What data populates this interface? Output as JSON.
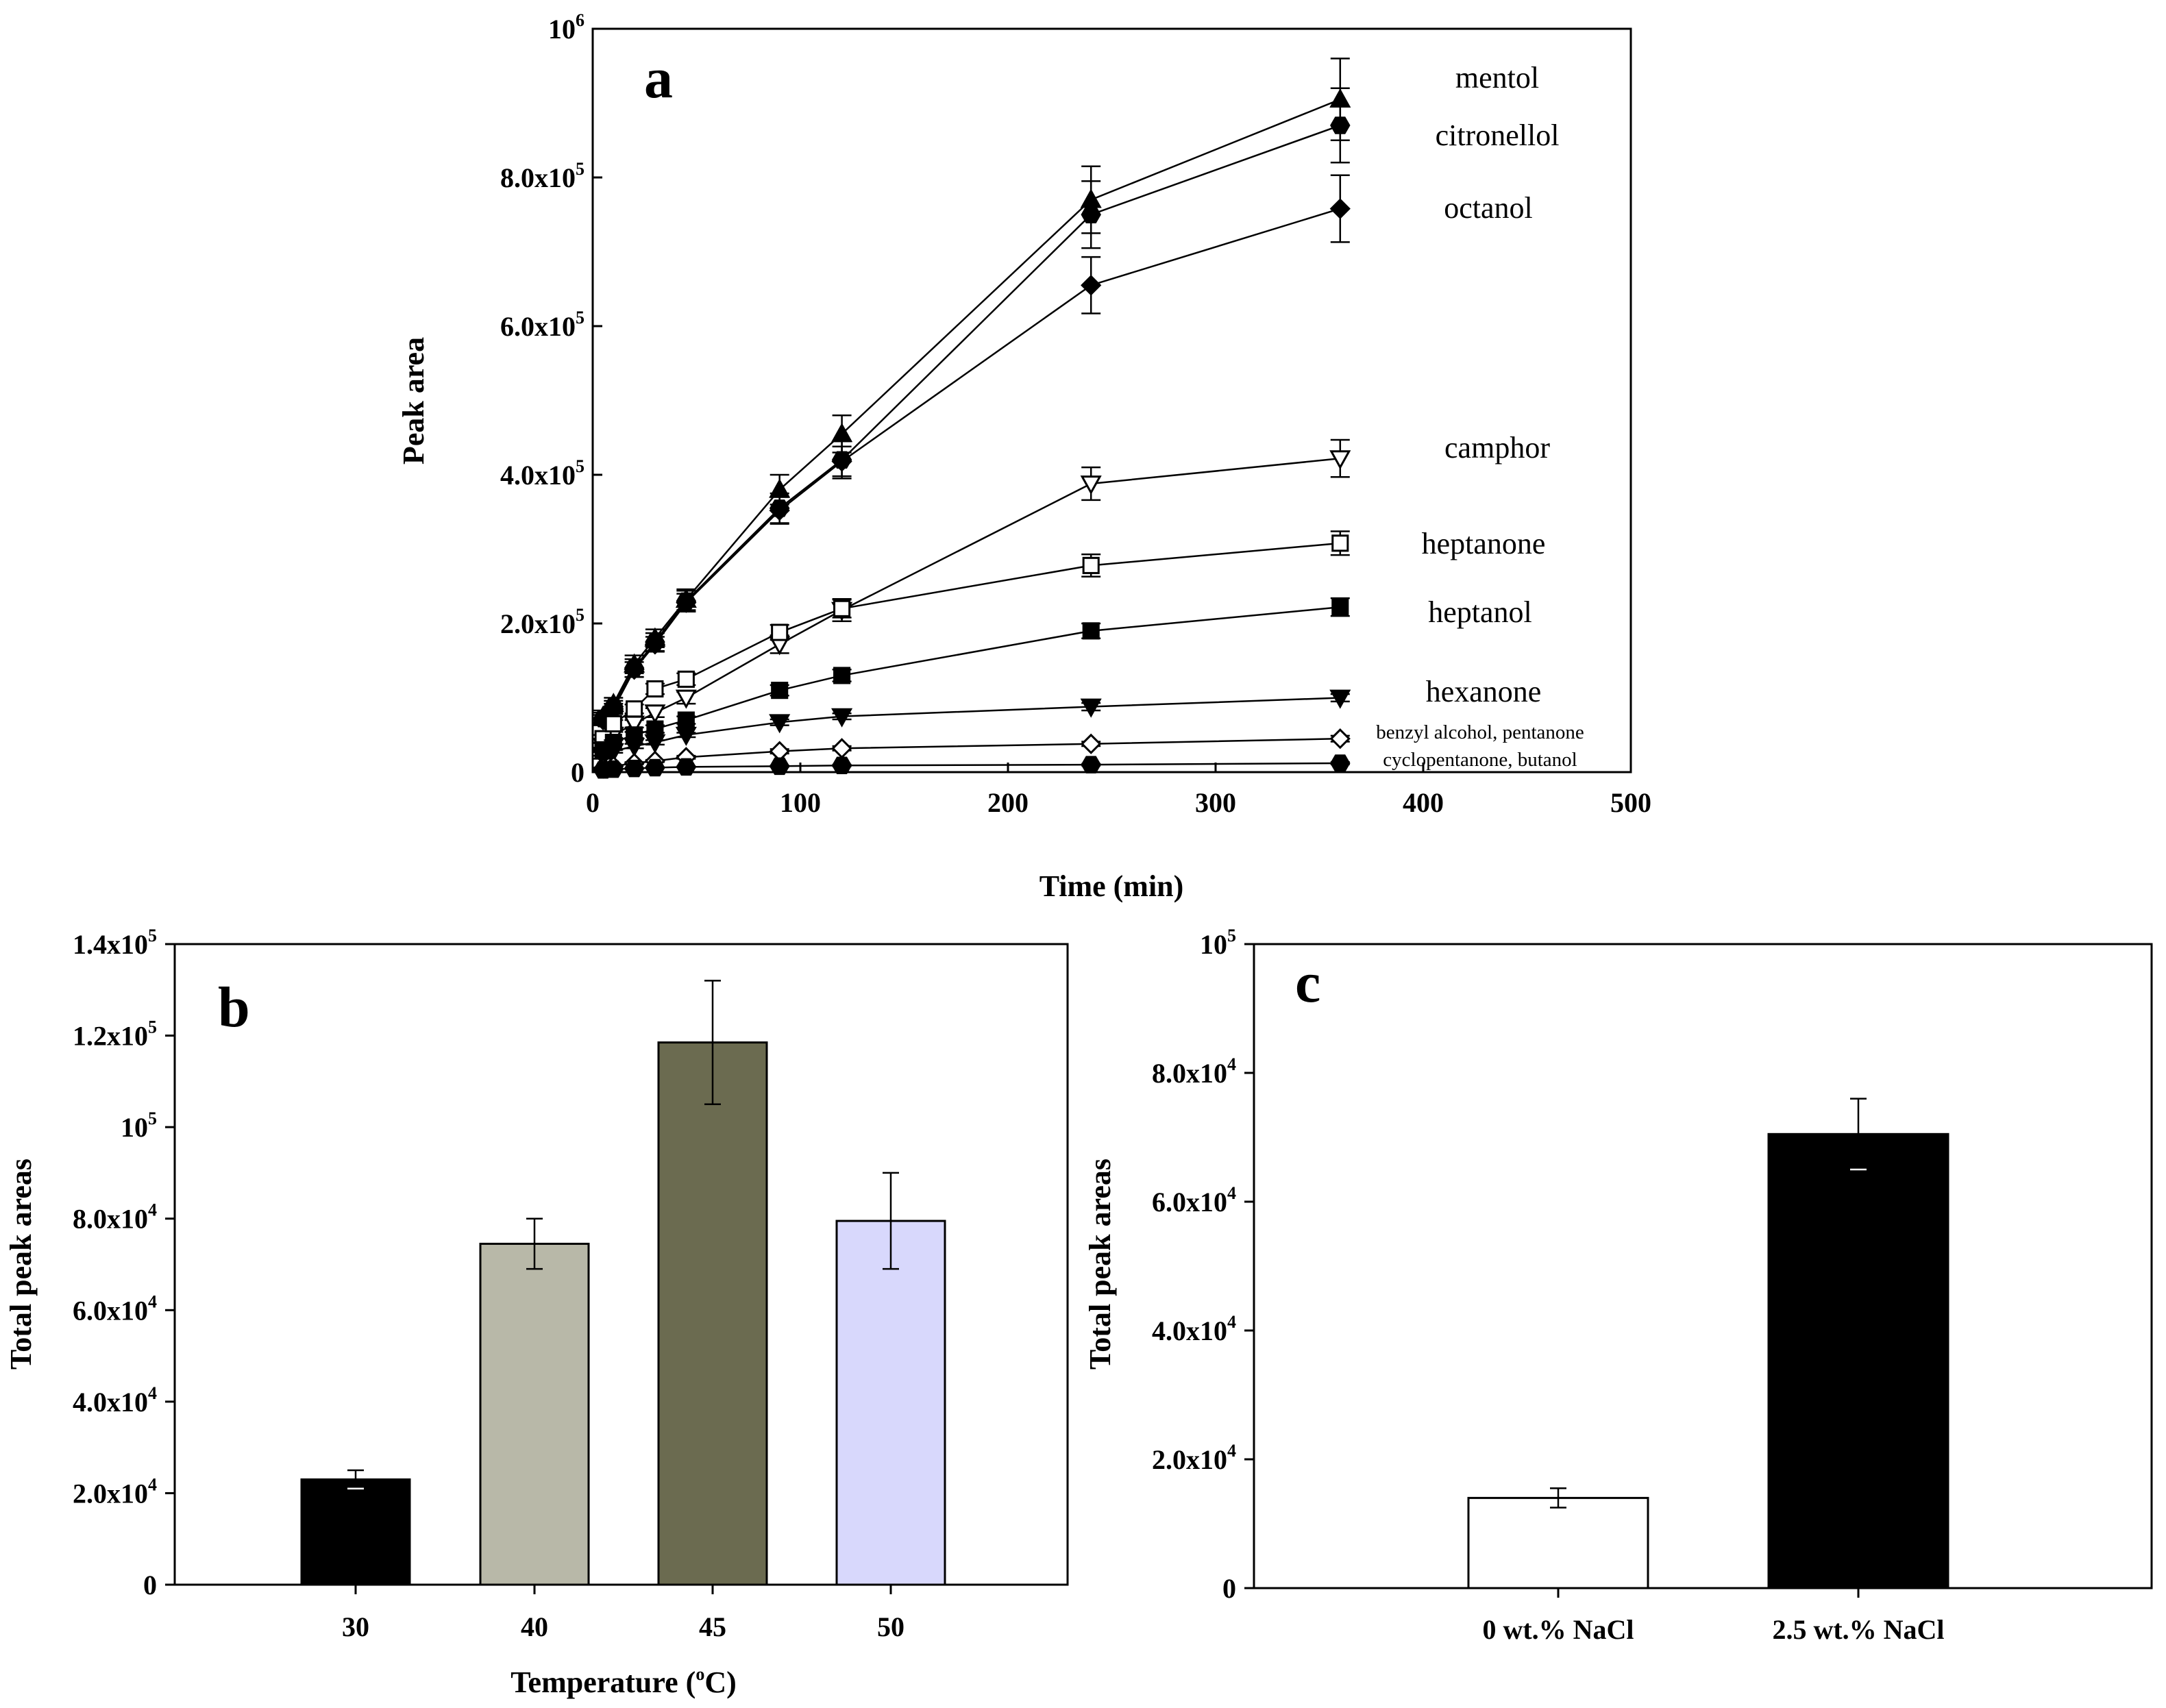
{
  "chart_data": [
    {
      "panel": "a",
      "type": "line",
      "xlabel": "Time (min)",
      "ylabel": "Peak area",
      "xlim": [
        0,
        500
      ],
      "ylim": [
        0,
        1000000
      ],
      "x_ticks": [
        "0",
        "100",
        "200",
        "300",
        "400",
        "500"
      ],
      "y_ticks": [
        {
          "mant": "0",
          "sup": ""
        },
        {
          "mant": "2.0x10",
          "sup": "5"
        },
        {
          "mant": "4.0x10",
          "sup": "5"
        },
        {
          "mant": "6.0x10",
          "sup": "5"
        },
        {
          "mant": "8.0x10",
          "sup": "5"
        },
        {
          "mant": "10",
          "sup": "6"
        }
      ],
      "x": [
        5,
        10,
        20,
        30,
        45,
        90,
        120,
        240,
        360
      ],
      "series": [
        {
          "name": "mentol",
          "marker": "triangle-up",
          "fill": "#000000",
          "values": [
            75000,
            92000,
            145000,
            180000,
            232000,
            380000,
            455000,
            770000,
            905000
          ],
          "err": [
            8000,
            8000,
            12000,
            12000,
            14000,
            20000,
            25000,
            45000,
            55000
          ]
        },
        {
          "name": "citronellol",
          "marker": "hexagon",
          "fill": "#000000",
          "values": [
            72000,
            88000,
            140000,
            175000,
            230000,
            355000,
            420000,
            750000,
            870000
          ],
          "err": [
            8000,
            8000,
            12000,
            12000,
            14000,
            20000,
            25000,
            45000,
            50000
          ]
        },
        {
          "name": "octanol",
          "marker": "diamond",
          "fill": "#000000",
          "values": [
            70000,
            85000,
            138000,
            172000,
            228000,
            352000,
            418000,
            655000,
            758000
          ],
          "err": [
            7000,
            7000,
            10000,
            10000,
            12000,
            18000,
            20000,
            38000,
            45000
          ]
        },
        {
          "name": "camphor",
          "marker": "triangle-down",
          "fill": "#ffffff",
          "values": [
            35000,
            50000,
            65000,
            80000,
            100000,
            172000,
            218000,
            388000,
            422000
          ],
          "err": [
            4000,
            4000,
            5000,
            6000,
            8000,
            12000,
            15000,
            22000,
            25000
          ]
        },
        {
          "name": "heptanone",
          "marker": "square",
          "fill": "#ffffff",
          "values": [
            45000,
            65000,
            85000,
            112000,
            125000,
            188000,
            220000,
            278000,
            308000
          ],
          "err": [
            5000,
            5000,
            6000,
            7000,
            8000,
            10000,
            12000,
            15000,
            16000
          ]
        },
        {
          "name": "heptanol",
          "marker": "square",
          "fill": "#000000",
          "values": [
            30000,
            40000,
            50000,
            58000,
            70000,
            110000,
            130000,
            190000,
            222000
          ],
          "err": [
            3000,
            3000,
            4000,
            5000,
            5000,
            7000,
            8000,
            10000,
            12000
          ]
        },
        {
          "name": "hexanone",
          "marker": "triangle-down",
          "fill": "#000000",
          "values": [
            20000,
            28000,
            35000,
            40000,
            50000,
            67000,
            75000,
            88000,
            100000
          ],
          "err": [
            2000,
            2000,
            3000,
            3000,
            3000,
            4000,
            4000,
            5000,
            5000
          ]
        },
        {
          "name": "benzyl alcohol, pentanone",
          "marker": "diamond",
          "fill": "#ffffff",
          "values": [
            5000,
            8000,
            12000,
            15000,
            20000,
            28000,
            32000,
            38000,
            45000
          ],
          "err": [
            1000,
            1000,
            1500,
            1500,
            2000,
            3000,
            3000,
            3000,
            4000
          ]
        },
        {
          "name": "cyclopentanone, butanol",
          "marker": "hexagon",
          "fill": "#000000",
          "values": [
            3000,
            4000,
            5000,
            6000,
            7000,
            8000,
            9000,
            10000,
            12000
          ],
          "err": [
            500,
            500,
            700,
            700,
            800,
            1000,
            1000,
            1200,
            1500
          ]
        }
      ]
    },
    {
      "panel": "b",
      "type": "bar",
      "xlabel": "Temperature (",
      "xlabel_sup": "o",
      "xlabel_end": "C)",
      "ylabel": "Total peak areas",
      "ylim": [
        0,
        140000
      ],
      "y_ticks": [
        {
          "mant": "0",
          "sup": ""
        },
        {
          "mant": "2.0x10",
          "sup": "4"
        },
        {
          "mant": "4.0x10",
          "sup": "4"
        },
        {
          "mant": "6.0x10",
          "sup": "4"
        },
        {
          "mant": "8.0x10",
          "sup": "4"
        },
        {
          "mant": "10",
          "sup": "5"
        },
        {
          "mant": "1.2x10",
          "sup": "5"
        },
        {
          "mant": "1.4x10",
          "sup": "5"
        }
      ],
      "categories": [
        "30",
        "40",
        "45",
        "50"
      ],
      "values": [
        23000,
        74500,
        118500,
        79500
      ],
      "err": [
        2000,
        5500,
        13500,
        10500
      ],
      "colors": [
        "#000000",
        "#b8b8a8",
        "#6b6b50",
        "#d8d8fc"
      ]
    },
    {
      "panel": "c",
      "type": "bar",
      "xlabel": "",
      "ylabel": "Total peak areas",
      "ylim": [
        0,
        100000
      ],
      "y_ticks": [
        {
          "mant": "0",
          "sup": ""
        },
        {
          "mant": "2.0x10",
          "sup": "4"
        },
        {
          "mant": "4.0x10",
          "sup": "4"
        },
        {
          "mant": "6.0x10",
          "sup": "4"
        },
        {
          "mant": "8.0x10",
          "sup": "4"
        },
        {
          "mant": "10",
          "sup": "5"
        }
      ],
      "categories": [
        "0 wt.%  NaCl",
        "2.5 wt.% NaCl"
      ],
      "values": [
        14000,
        70500
      ],
      "err": [
        1500,
        5500
      ],
      "colors": [
        "#ffffff",
        "#000000"
      ]
    }
  ]
}
